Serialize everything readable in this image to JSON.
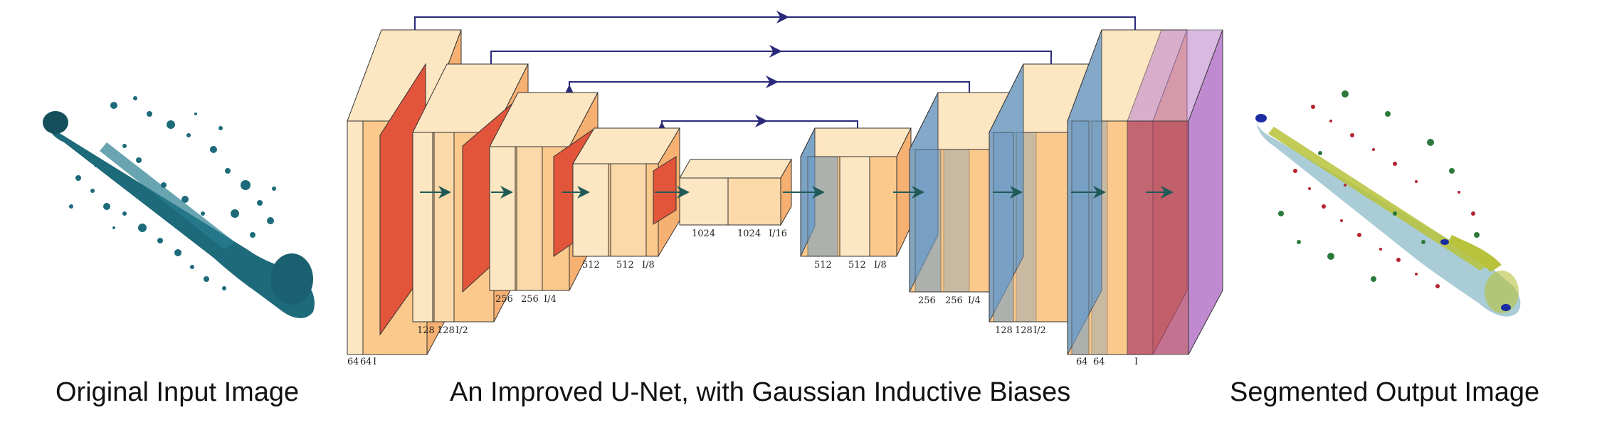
{
  "captions": {
    "input": "Original Input Image",
    "network": "An Improved U-Net, with Gaussian Inductive Biases",
    "output": "Segmented Output Image"
  },
  "colors": {
    "block_light": "#fde6c2",
    "block_mid": "#fbc98c",
    "block_side": "#f6b071",
    "pool": "#e2553a",
    "upsample": "#6f9ec9",
    "output_layer": "#c08ad0",
    "skip_arrow": "#2b2a7a",
    "flow_arrow": "#1f5a57",
    "input_splash": "#1d6a7a",
    "output_main": "#a9ccd6",
    "output_yellow": "#b8c23a",
    "output_red": "#b3232f",
    "output_green": "#2c7a3b",
    "output_blue": "#1a2ca3"
  },
  "encoder": [
    {
      "labels": [
        "64",
        "64",
        "I"
      ]
    },
    {
      "labels": [
        "128",
        "128",
        "I/2"
      ]
    },
    {
      "labels": [
        "256",
        "256",
        "I/4"
      ]
    },
    {
      "labels": [
        "512",
        "512",
        "I/8"
      ]
    },
    {
      "labels": [
        "1024",
        "1024",
        "I/16"
      ]
    }
  ],
  "decoder": [
    {
      "labels": [
        "512",
        "512",
        "I/8"
      ]
    },
    {
      "labels": [
        "256",
        "256",
        "I/4"
      ]
    },
    {
      "labels": [
        "128",
        "128",
        "I/2"
      ]
    },
    {
      "labels": [
        "64",
        "64"
      ]
    },
    {
      "labels": [
        "I"
      ]
    }
  ]
}
